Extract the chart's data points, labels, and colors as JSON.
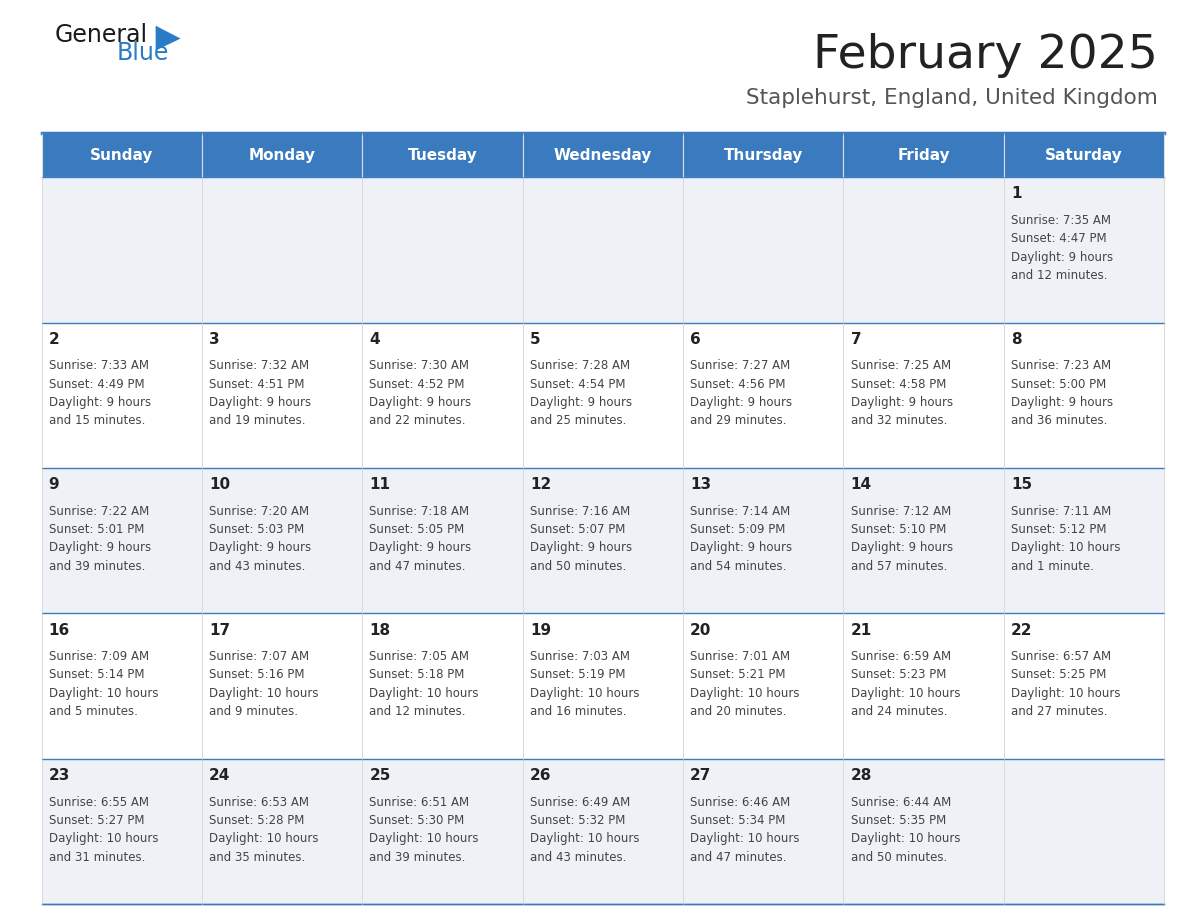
{
  "title": "February 2025",
  "subtitle": "Staplehurst, England, United Kingdom",
  "days_of_week": [
    "Sunday",
    "Monday",
    "Tuesday",
    "Wednesday",
    "Thursday",
    "Friday",
    "Saturday"
  ],
  "header_bg": "#3a7abf",
  "header_text": "#ffffff",
  "row_bg_odd": "#eef2f7",
  "row_bg_even": "#ffffff",
  "cell_border_color": "#3a7abf",
  "day_number_color": "#222222",
  "info_text_color": "#444444",
  "title_color": "#222222",
  "subtitle_color": "#555555",
  "logo_general_color": "#1a1a1a",
  "logo_blue_color": "#2b7cc7",
  "calendar_data": [
    [
      null,
      null,
      null,
      null,
      null,
      null,
      {
        "day": "1",
        "sunrise": "7:35 AM",
        "sunset": "4:47 PM",
        "daylight": "9 hours",
        "daylight2": "and 12 minutes."
      }
    ],
    [
      {
        "day": "2",
        "sunrise": "7:33 AM",
        "sunset": "4:49 PM",
        "daylight": "9 hours",
        "daylight2": "and 15 minutes."
      },
      {
        "day": "3",
        "sunrise": "7:32 AM",
        "sunset": "4:51 PM",
        "daylight": "9 hours",
        "daylight2": "and 19 minutes."
      },
      {
        "day": "4",
        "sunrise": "7:30 AM",
        "sunset": "4:52 PM",
        "daylight": "9 hours",
        "daylight2": "and 22 minutes."
      },
      {
        "day": "5",
        "sunrise": "7:28 AM",
        "sunset": "4:54 PM",
        "daylight": "9 hours",
        "daylight2": "and 25 minutes."
      },
      {
        "day": "6",
        "sunrise": "7:27 AM",
        "sunset": "4:56 PM",
        "daylight": "9 hours",
        "daylight2": "and 29 minutes."
      },
      {
        "day": "7",
        "sunrise": "7:25 AM",
        "sunset": "4:58 PM",
        "daylight": "9 hours",
        "daylight2": "and 32 minutes."
      },
      {
        "day": "8",
        "sunrise": "7:23 AM",
        "sunset": "5:00 PM",
        "daylight": "9 hours",
        "daylight2": "and 36 minutes."
      }
    ],
    [
      {
        "day": "9",
        "sunrise": "7:22 AM",
        "sunset": "5:01 PM",
        "daylight": "9 hours",
        "daylight2": "and 39 minutes."
      },
      {
        "day": "10",
        "sunrise": "7:20 AM",
        "sunset": "5:03 PM",
        "daylight": "9 hours",
        "daylight2": "and 43 minutes."
      },
      {
        "day": "11",
        "sunrise": "7:18 AM",
        "sunset": "5:05 PM",
        "daylight": "9 hours",
        "daylight2": "and 47 minutes."
      },
      {
        "day": "12",
        "sunrise": "7:16 AM",
        "sunset": "5:07 PM",
        "daylight": "9 hours",
        "daylight2": "and 50 minutes."
      },
      {
        "day": "13",
        "sunrise": "7:14 AM",
        "sunset": "5:09 PM",
        "daylight": "9 hours",
        "daylight2": "and 54 minutes."
      },
      {
        "day": "14",
        "sunrise": "7:12 AM",
        "sunset": "5:10 PM",
        "daylight": "9 hours",
        "daylight2": "and 57 minutes."
      },
      {
        "day": "15",
        "sunrise": "7:11 AM",
        "sunset": "5:12 PM",
        "daylight": "10 hours",
        "daylight2": "and 1 minute."
      }
    ],
    [
      {
        "day": "16",
        "sunrise": "7:09 AM",
        "sunset": "5:14 PM",
        "daylight": "10 hours",
        "daylight2": "and 5 minutes."
      },
      {
        "day": "17",
        "sunrise": "7:07 AM",
        "sunset": "5:16 PM",
        "daylight": "10 hours",
        "daylight2": "and 9 minutes."
      },
      {
        "day": "18",
        "sunrise": "7:05 AM",
        "sunset": "5:18 PM",
        "daylight": "10 hours",
        "daylight2": "and 12 minutes."
      },
      {
        "day": "19",
        "sunrise": "7:03 AM",
        "sunset": "5:19 PM",
        "daylight": "10 hours",
        "daylight2": "and 16 minutes."
      },
      {
        "day": "20",
        "sunrise": "7:01 AM",
        "sunset": "5:21 PM",
        "daylight": "10 hours",
        "daylight2": "and 20 minutes."
      },
      {
        "day": "21",
        "sunrise": "6:59 AM",
        "sunset": "5:23 PM",
        "daylight": "10 hours",
        "daylight2": "and 24 minutes."
      },
      {
        "day": "22",
        "sunrise": "6:57 AM",
        "sunset": "5:25 PM",
        "daylight": "10 hours",
        "daylight2": "and 27 minutes."
      }
    ],
    [
      {
        "day": "23",
        "sunrise": "6:55 AM",
        "sunset": "5:27 PM",
        "daylight": "10 hours",
        "daylight2": "and 31 minutes."
      },
      {
        "day": "24",
        "sunrise": "6:53 AM",
        "sunset": "5:28 PM",
        "daylight": "10 hours",
        "daylight2": "and 35 minutes."
      },
      {
        "day": "25",
        "sunrise": "6:51 AM",
        "sunset": "5:30 PM",
        "daylight": "10 hours",
        "daylight2": "and 39 minutes."
      },
      {
        "day": "26",
        "sunrise": "6:49 AM",
        "sunset": "5:32 PM",
        "daylight": "10 hours",
        "daylight2": "and 43 minutes."
      },
      {
        "day": "27",
        "sunrise": "6:46 AM",
        "sunset": "5:34 PM",
        "daylight": "10 hours",
        "daylight2": "and 47 minutes."
      },
      {
        "day": "28",
        "sunrise": "6:44 AM",
        "sunset": "5:35 PM",
        "daylight": "10 hours",
        "daylight2": "and 50 minutes."
      },
      null
    ]
  ]
}
